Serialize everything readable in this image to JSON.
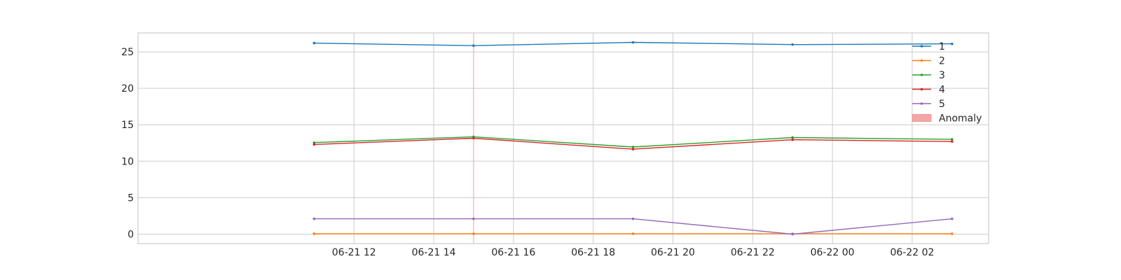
{
  "chart_data": {
    "type": "line",
    "title": "",
    "xlabel": "",
    "ylabel": "",
    "x": [
      "2024-06-21 11:00",
      "2024-06-21 15:00",
      "2024-06-21 19:00",
      "2024-06-21 23:00",
      "2024-06-22 03:00"
    ],
    "series": [
      {
        "name": "1",
        "color": "#1f77b4",
        "values": [
          26.2,
          25.85,
          26.3,
          26.0,
          26.1
        ]
      },
      {
        "name": "2",
        "color": "#ff7f0e",
        "values": [
          0.05,
          0.05,
          0.05,
          0.05,
          0.05
        ]
      },
      {
        "name": "3",
        "color": "#2ca02c",
        "values": [
          12.55,
          13.35,
          11.95,
          13.25,
          13.0
        ]
      },
      {
        "name": "4",
        "color": "#d62728",
        "values": [
          12.3,
          13.15,
          11.65,
          12.95,
          12.7
        ]
      },
      {
        "name": "5",
        "color": "#9467bd",
        "values": [
          2.1,
          2.1,
          2.1,
          0.0,
          2.1
        ]
      }
    ],
    "anomaly": {
      "label": "Anomaly",
      "color": "#f4a6a6",
      "at": "2024-06-21 15:00"
    },
    "xticks": [
      "2024-06-21 12:00",
      "2024-06-21 14:00",
      "2024-06-21 16:00",
      "2024-06-21 18:00",
      "2024-06-21 20:00",
      "2024-06-21 22:00",
      "2024-06-22 00:00",
      "2024-06-22 02:00"
    ],
    "xtick_labels": [
      "06-21 12",
      "06-21 14",
      "06-21 16",
      "06-21 18",
      "06-21 20",
      "06-21 22",
      "06-22 00",
      "06-22 02"
    ],
    "yticks": [
      0,
      5,
      10,
      15,
      20,
      25
    ],
    "ytick_labels": [
      "0",
      "5",
      "10",
      "15",
      "20",
      "25"
    ],
    "xlim": [
      "2024-06-21 06:35",
      "2024-06-22 03:55"
    ],
    "ylim": [
      -1.3,
      27.6
    ],
    "grid": true,
    "legend_position": "top-right",
    "grid_color": "#cccccc",
    "axes_edge_color": "#cccccc"
  }
}
